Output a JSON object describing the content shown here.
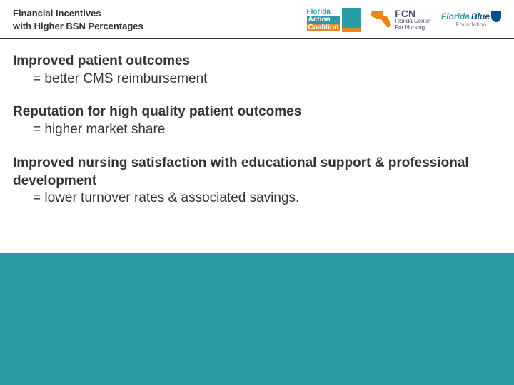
{
  "header": {
    "title_line1": "Financial Incentives",
    "title_line2": "with Higher BSN Percentages",
    "logos": {
      "fac": {
        "florida": "Florida",
        "action": "Action",
        "coalition": "Coalition"
      },
      "fcn": {
        "abbrev": "FCN",
        "line1": "Florida Center",
        "line2": "For Nursing"
      },
      "fb": {
        "florida": "Florida",
        "blue": "Blue",
        "foundation": "Foundation"
      }
    }
  },
  "points": [
    {
      "heading": "Improved patient outcomes",
      "result": "= better CMS reimbursement"
    },
    {
      "heading": "Reputation for high quality patient outcomes",
      "result": "= higher market share"
    },
    {
      "heading": "Improved nursing satisfaction with educational support & professional development",
      "result": "= lower turnover rates & associated savings."
    }
  ],
  "colors": {
    "teal": "#2a9ca3",
    "orange": "#e8871e",
    "navy": "#0a4d8c",
    "text": "#333333"
  }
}
